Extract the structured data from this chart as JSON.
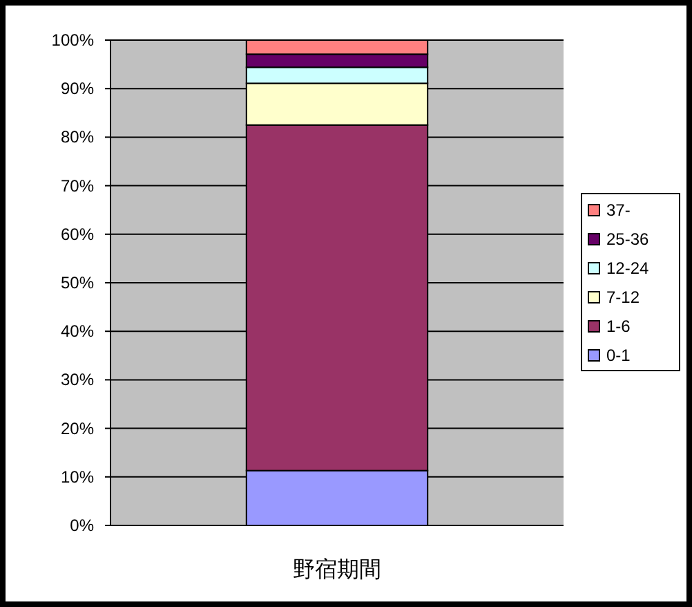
{
  "chart_data": {
    "type": "bar",
    "stacked": true,
    "categories": [
      "野宿期間"
    ],
    "series": [
      {
        "name": "0-1",
        "color": "#9999ff",
        "values": [
          11.3
        ]
      },
      {
        "name": "1-6",
        "color": "#993366",
        "values": [
          71.2
        ]
      },
      {
        "name": "7-12",
        "color": "#ffffcc",
        "values": [
          8.6
        ]
      },
      {
        "name": "12-24",
        "color": "#ccffff",
        "values": [
          3.3
        ]
      },
      {
        "name": "25-36",
        "color": "#660066",
        "values": [
          2.7
        ]
      },
      {
        "name": "37-",
        "color": "#ff8080",
        "values": [
          2.9
        ]
      }
    ],
    "ylim": [
      0,
      100
    ],
    "yticks": [
      {
        "value": 0,
        "label": "0%"
      },
      {
        "value": 10,
        "label": "10%"
      },
      {
        "value": 20,
        "label": "20%"
      },
      {
        "value": 30,
        "label": "30%"
      },
      {
        "value": 40,
        "label": "40%"
      },
      {
        "value": 50,
        "label": "50%"
      },
      {
        "value": 60,
        "label": "60%"
      },
      {
        "value": 70,
        "label": "70%"
      },
      {
        "value": 80,
        "label": "80%"
      },
      {
        "value": 90,
        "label": "90%"
      },
      {
        "value": 100,
        "label": "100%"
      }
    ],
    "grid": "y",
    "legend": "right"
  }
}
